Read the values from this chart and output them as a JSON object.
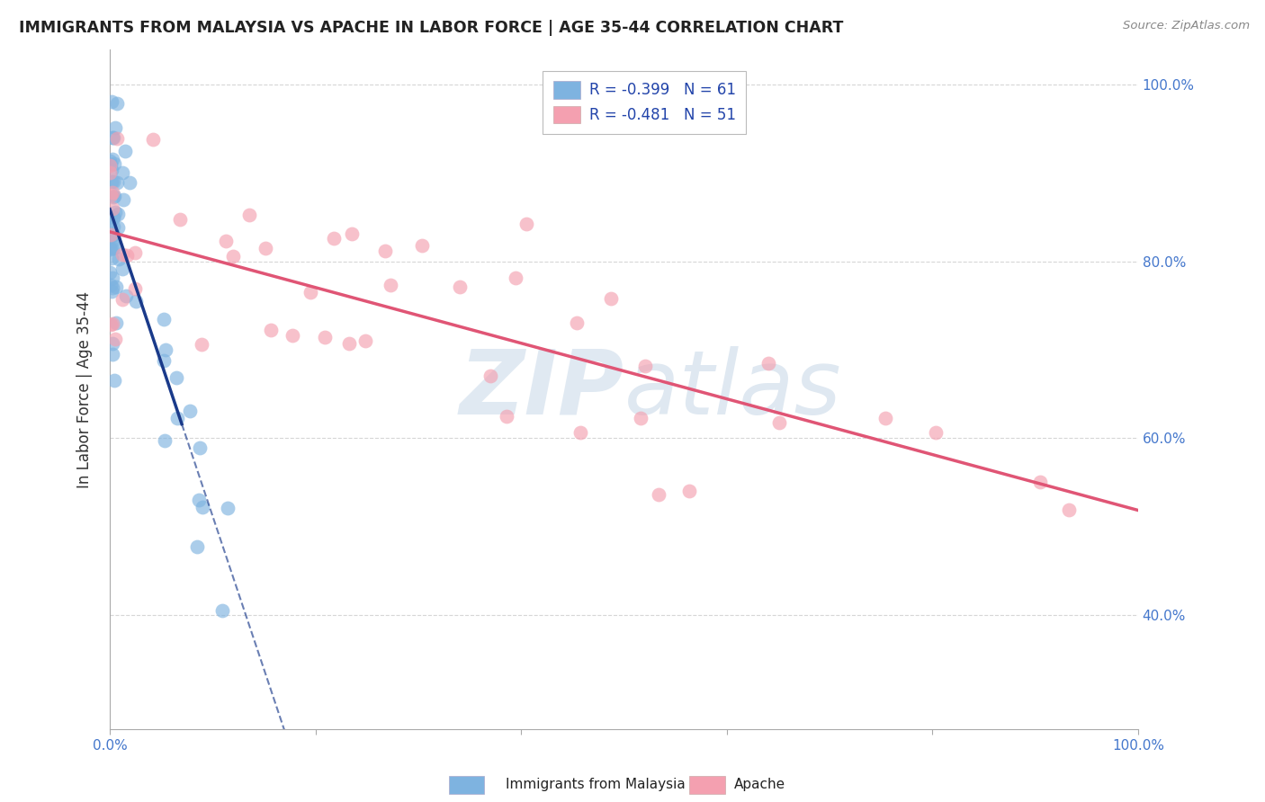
{
  "title": "IMMIGRANTS FROM MALAYSIA VS APACHE IN LABOR FORCE | AGE 35-44 CORRELATION CHART",
  "source": "Source: ZipAtlas.com",
  "ylabel": "In Labor Force | Age 35-44",
  "watermark_zip": "ZIP",
  "watermark_atlas": "atlas",
  "blue_label": "Immigrants from Malaysia",
  "pink_label": "Apache",
  "blue_R": -0.399,
  "blue_N": 61,
  "pink_R": -0.481,
  "pink_N": 51,
  "blue_color": "#7eb3e0",
  "pink_color": "#f4a0b0",
  "blue_line_color": "#1a3a8a",
  "pink_line_color": "#e05575",
  "background_color": "#ffffff",
  "grid_color": "#cccccc",
  "xlim": [
    0.0,
    1.0
  ],
  "ylim_low": 0.27,
  "ylim_high": 1.04,
  "y_ticks": [
    0.4,
    0.6,
    0.8,
    1.0
  ],
  "x_ticks": [
    0.0,
    1.0
  ],
  "legend_R_color": "#2255cc",
  "legend_N_color": "#2255cc",
  "title_color": "#222222",
  "source_color": "#888888",
  "ylabel_color": "#333333",
  "tick_label_color": "#4477cc"
}
